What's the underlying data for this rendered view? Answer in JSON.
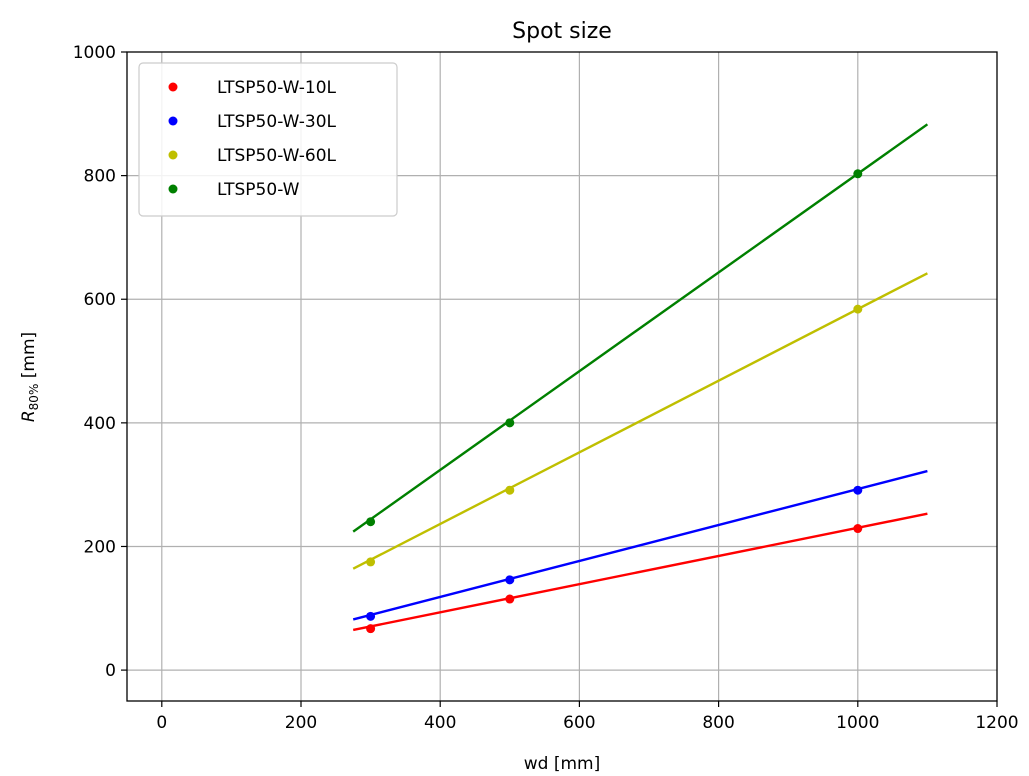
{
  "chart_data": {
    "type": "scatter",
    "title": "Spot size",
    "xlabel": "wd [mm]",
    "ylabel": {
      "base": "R",
      "sub": "80%",
      "unit": " [mm]"
    },
    "xlim": [
      -50,
      1200
    ],
    "ylim": [
      -50,
      1000
    ],
    "xticks": [
      0,
      200,
      400,
      600,
      800,
      1000,
      1200
    ],
    "yticks": [
      0,
      200,
      400,
      600,
      800,
      1000
    ],
    "grid": true,
    "legend_position": "top-left",
    "series": [
      {
        "name": "LTSP50-W-10L",
        "color": "#ff0000",
        "points": [
          [
            300,
            67
          ],
          [
            500,
            115
          ],
          [
            1000,
            229
          ]
        ],
        "fit": [
          [
            275,
            65
          ],
          [
            1100,
            253
          ]
        ]
      },
      {
        "name": "LTSP50-W-30L",
        "color": "#0000ff",
        "points": [
          [
            300,
            87
          ],
          [
            500,
            146
          ],
          [
            1000,
            291
          ]
        ],
        "fit": [
          [
            275,
            82
          ],
          [
            1100,
            322
          ]
        ]
      },
      {
        "name": "LTSP50-W-60L",
        "color": "#bfbf00",
        "points": [
          [
            300,
            175
          ],
          [
            500,
            291
          ],
          [
            1000,
            584
          ]
        ],
        "fit": [
          [
            275,
            164
          ],
          [
            1100,
            642
          ]
        ]
      },
      {
        "name": "LTSP50-W",
        "color": "#008000",
        "points": [
          [
            300,
            240
          ],
          [
            500,
            400
          ],
          [
            1000,
            803
          ]
        ],
        "fit": [
          [
            275,
            224
          ],
          [
            1100,
            883
          ]
        ]
      }
    ]
  }
}
